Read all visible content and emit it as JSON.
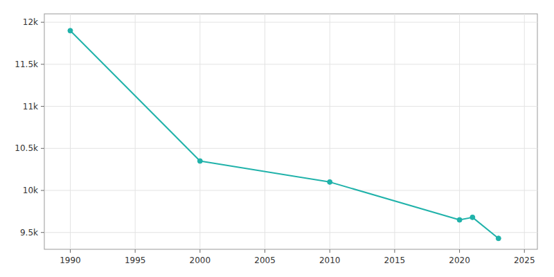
{
  "chart_data": {
    "type": "line",
    "x": [
      1990,
      2000,
      2010,
      2020,
      2021,
      2023
    ],
    "values": [
      11900,
      10350,
      10100,
      9650,
      9680,
      9430
    ],
    "color": "#20b2aa",
    "marker": "circle",
    "xlim": [
      1988,
      2026
    ],
    "xticks": [
      1990,
      1995,
      2000,
      2005,
      2010,
      2015,
      2020,
      2025
    ],
    "ylim": [
      9300,
      12100
    ],
    "yticks": [
      {
        "value": 9500,
        "label": "9.5k"
      },
      {
        "value": 10000,
        "label": "10k"
      },
      {
        "value": 10500,
        "label": "10.5k"
      },
      {
        "value": 11000,
        "label": "11k"
      },
      {
        "value": 11500,
        "label": "11.5k"
      },
      {
        "value": 12000,
        "label": "12k"
      }
    ],
    "grid": true
  }
}
